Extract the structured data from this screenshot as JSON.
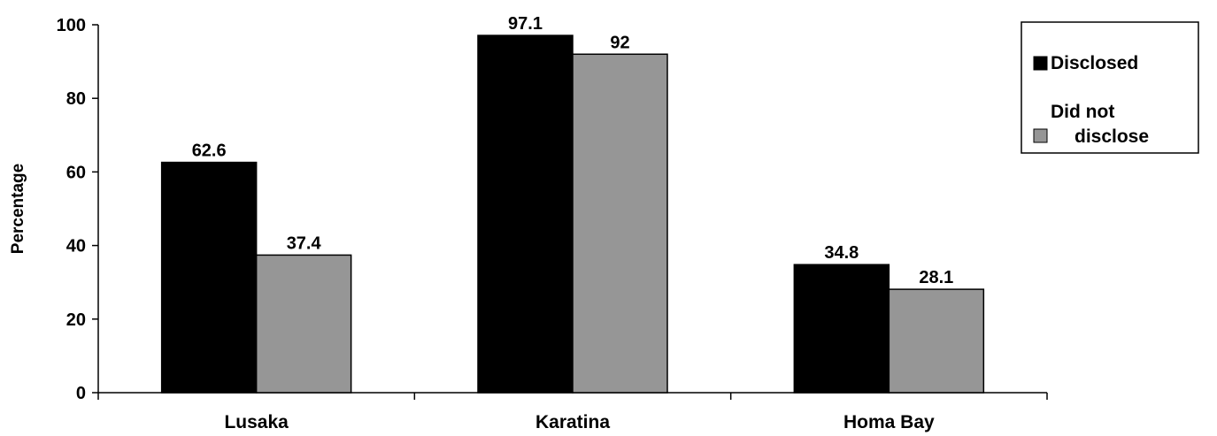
{
  "chart_data": {
    "type": "bar",
    "categories": [
      "Lusaka",
      "Karatina",
      "Homa Bay"
    ],
    "series": [
      {
        "name": "Disclosed",
        "color": "#000000",
        "values": [
          62.6,
          97.1,
          34.8
        ],
        "labels": [
          "62.6",
          "97.1",
          "34.8"
        ]
      },
      {
        "name": "Did not disclose",
        "color": "#969696",
        "values": [
          37.4,
          92,
          28.1
        ],
        "labels": [
          "37.4",
          "92",
          "28.1"
        ]
      }
    ],
    "ylabel": "Percentage",
    "ylim": [
      0,
      100
    ],
    "yticks": [
      0,
      20,
      40,
      60,
      80,
      100
    ],
    "grid": false,
    "legend_position": "top-right",
    "legend_lines": [
      [
        "Disclosed"
      ],
      [
        "Did not",
        "disclose"
      ]
    ]
  }
}
